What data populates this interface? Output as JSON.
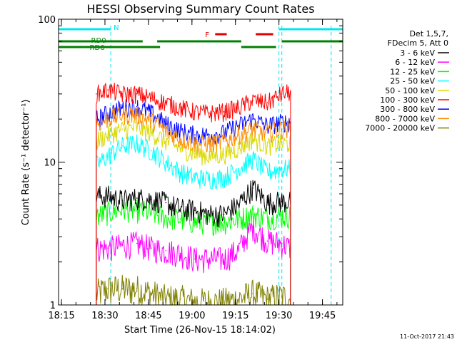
{
  "chart_data": {
    "type": "line",
    "title": "HESSI Observing Summary Count Rates",
    "xlabel": "Start Time (26-Nov-15 18:14:02)",
    "ylabel": "Count Rate (s⁻¹ detector⁻¹)",
    "yscale": "log",
    "ylim": [
      1,
      100
    ],
    "xlim": [
      "18:14",
      "19:52"
    ],
    "x_ticks": [
      "18:15",
      "18:30",
      "18:45",
      "19:00",
      "19:15",
      "19:30",
      "19:45"
    ],
    "y_ticks": [
      "1",
      "10",
      "100"
    ],
    "legend_header": [
      "Det 1,5,7,",
      "FDecim 5, Att 0"
    ],
    "legend_position": "right",
    "footer": "11-Oct-2017 21:43",
    "flags": {
      "night": {
        "label": "N",
        "color": "#00e5ee",
        "intervals": [
          [
            "18:14",
            "18:32"
          ],
          [
            "19:30",
            "19:52"
          ]
        ]
      },
      "saa_lines": [
        "18:32",
        "19:30",
        "19:31",
        "19:48"
      ],
      "flare": {
        "label": "F",
        "color": "#e00000",
        "intervals": [
          [
            "19:08",
            "19:12"
          ],
          [
            "19:22",
            "19:28"
          ]
        ]
      },
      "decim": {
        "label": "RD0",
        "label_low": "RD6",
        "color": "#008000",
        "high_intervals": [
          [
            "18:14",
            "18:43"
          ],
          [
            "18:48",
            "19:17"
          ],
          [
            "19:31",
            "19:52"
          ]
        ],
        "low_intervals": [
          [
            "18:14",
            "18:23"
          ],
          [
            "18:23",
            "18:49"
          ],
          [
            "19:17",
            "19:29"
          ]
        ]
      }
    },
    "series": [
      {
        "name": "3 - 6 keV",
        "color": "#000000",
        "x": [
          "18:27",
          "18:31",
          "18:36",
          "18:41",
          "18:46",
          "18:51",
          "18:56",
          "19:01",
          "19:06",
          "19:11",
          "19:16",
          "19:21",
          "19:26",
          "19:31",
          "19:34"
        ],
        "values": [
          5.8,
          5.8,
          5.4,
          5.6,
          5.5,
          5.2,
          4.7,
          4.6,
          4.3,
          4.3,
          5,
          6.6,
          5.2,
          5.3,
          5.3
        ]
      },
      {
        "name": "6 - 12 keV",
        "color": "#ff00ff",
        "x": [
          "18:27",
          "18:31",
          "18:36",
          "18:41",
          "18:46",
          "18:51",
          "18:56",
          "19:01",
          "19:06",
          "19:11",
          "19:16",
          "19:21",
          "19:26",
          "19:31",
          "19:34"
        ],
        "values": [
          2.5,
          2.5,
          2.6,
          2.7,
          2.5,
          2.4,
          2.3,
          2.1,
          2.1,
          2.1,
          2.4,
          3.5,
          2.8,
          2.7,
          2.5
        ]
      },
      {
        "name": "12 - 25 keV",
        "color": "#00ff00",
        "x": [
          "18:27",
          "18:31",
          "18:36",
          "18:41",
          "18:46",
          "18:51",
          "18:56",
          "19:01",
          "19:06",
          "19:11",
          "19:16",
          "19:21",
          "19:26",
          "19:31",
          "19:34"
        ],
        "values": [
          4.2,
          4.4,
          4.7,
          4.6,
          4.4,
          4.1,
          4,
          3.8,
          3.8,
          3.8,
          4,
          4.3,
          4.1,
          4.2,
          4.2
        ]
      },
      {
        "name": "25 - 50 keV",
        "color": "#00ffff",
        "x": [
          "18:27",
          "18:31",
          "18:36",
          "18:41",
          "18:46",
          "18:51",
          "18:56",
          "19:01",
          "19:06",
          "19:11",
          "19:16",
          "19:21",
          "19:26",
          "19:31",
          "19:34"
        ],
        "values": [
          9.5,
          11,
          13,
          13.5,
          12,
          10,
          8.5,
          7.8,
          7.6,
          7.8,
          9,
          10.5,
          8.5,
          9,
          9
        ]
      },
      {
        "name": "50 - 100 keV",
        "color": "#d8d800",
        "x": [
          "18:27",
          "18:31",
          "18:36",
          "18:41",
          "18:46",
          "18:51",
          "18:56",
          "19:01",
          "19:06",
          "19:11",
          "19:16",
          "19:21",
          "19:26",
          "19:31",
          "19:34"
        ],
        "values": [
          14,
          15.5,
          17,
          17.5,
          16,
          14,
          12.5,
          11.5,
          11,
          11.3,
          12.5,
          14.5,
          13,
          13.5,
          13.5
        ]
      },
      {
        "name": "100 - 300 keV",
        "color": "#ff0000",
        "x": [
          "18:27",
          "18:31",
          "18:36",
          "18:41",
          "18:46",
          "18:51",
          "18:56",
          "19:01",
          "19:06",
          "19:11",
          "19:16",
          "19:21",
          "19:26",
          "19:31",
          "19:34"
        ],
        "values": [
          30,
          32,
          30,
          30,
          28,
          26,
          24,
          22.5,
          22,
          22.5,
          24,
          27,
          26,
          30,
          31
        ]
      },
      {
        "name": "300 - 800 keV",
        "color": "#0000ff",
        "x": [
          "18:27",
          "18:31",
          "18:36",
          "18:41",
          "18:46",
          "18:51",
          "18:56",
          "19:01",
          "19:06",
          "19:11",
          "19:16",
          "19:21",
          "19:26",
          "19:31",
          "19:34"
        ],
        "values": [
          20,
          22,
          24,
          24.5,
          22,
          18.5,
          16.5,
          15.5,
          15.5,
          16,
          18,
          20,
          18,
          19,
          19
        ]
      },
      {
        "name": "800 - 7000 keV",
        "color": "#ff8c00",
        "x": [
          "18:27",
          "18:31",
          "18:36",
          "18:41",
          "18:46",
          "18:51",
          "18:56",
          "19:01",
          "19:06",
          "19:11",
          "19:16",
          "19:21",
          "19:26",
          "19:31",
          "19:34"
        ],
        "values": [
          18.5,
          20,
          21.5,
          21.5,
          19.5,
          16.5,
          14.5,
          13.5,
          13.5,
          14,
          15.5,
          17,
          16,
          17,
          17
        ]
      },
      {
        "name": "7000 - 20000 keV",
        "color": "#808000",
        "x": [
          "18:27",
          "18:31",
          "18:36",
          "18:41",
          "18:46",
          "18:51",
          "18:56",
          "19:01",
          "19:06",
          "19:11",
          "19:16",
          "19:21",
          "19:26",
          "19:31",
          "19:34"
        ],
        "values": [
          1.2,
          1.3,
          1.3,
          1.3,
          1.2,
          1.1,
          1.1,
          1.05,
          1.05,
          1.05,
          1.1,
          1.2,
          1.1,
          1.15,
          1.1
        ]
      }
    ]
  }
}
